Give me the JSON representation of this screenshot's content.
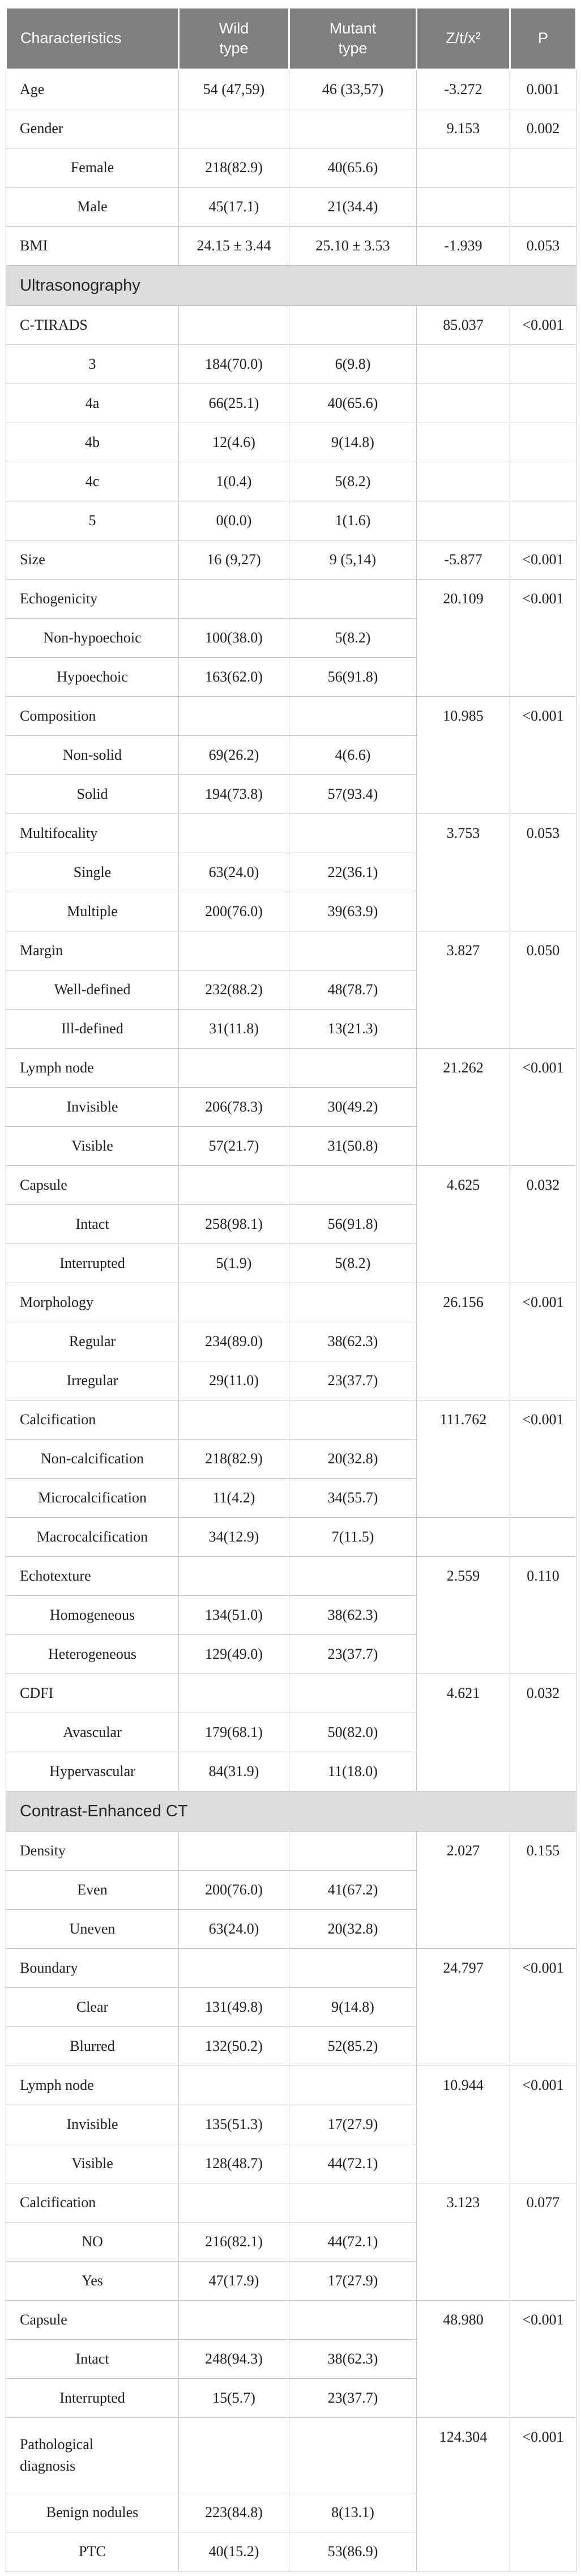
{
  "styles": {
    "header_bg": "#7f7f7f",
    "header_text": "#ffffff",
    "section_bg": "#dcdcdc",
    "grid_border": "#c3c3c3",
    "body_text": "#1f1f1f"
  },
  "table": {
    "columns": [
      {
        "label": "Characteristics"
      },
      {
        "label": "Wild\ntype"
      },
      {
        "label": "Mutant\ntype"
      },
      {
        "label": "Z/t/x²"
      },
      {
        "label": "P"
      }
    ],
    "rows": [
      {
        "type": "data",
        "label": "Age",
        "indent": false,
        "wild": "54 (47,59)",
        "mutant": "46 (33,57)",
        "stat": "-3.272",
        "p": "0.001"
      },
      {
        "type": "data",
        "label": "Gender",
        "indent": false,
        "wild": "",
        "mutant": "",
        "stat": "9.153",
        "p": "0.002"
      },
      {
        "type": "data",
        "label": "Female",
        "indent": true,
        "wild": "218(82.9)",
        "mutant": "40(65.6)",
        "stat": "",
        "p": ""
      },
      {
        "type": "data",
        "label": "Male",
        "indent": true,
        "wild": "45(17.1)",
        "mutant": "21(34.4)",
        "stat": "",
        "p": ""
      },
      {
        "type": "data",
        "label": "BMI",
        "indent": false,
        "wild": "24.15 ± 3.44",
        "mutant": "25.10 ± 3.53",
        "stat": "-1.939",
        "p": "0.053"
      },
      {
        "type": "section",
        "label": "Ultrasonography"
      },
      {
        "type": "data",
        "label": "C-TIRADS",
        "indent": false,
        "wild": "",
        "mutant": "",
        "stat": "85.037",
        "p": "<0.001"
      },
      {
        "type": "data",
        "label": "3",
        "indent": true,
        "wild": "184(70.0)",
        "mutant": "6(9.8)",
        "stat": "",
        "p": ""
      },
      {
        "type": "data",
        "label": "4a",
        "indent": true,
        "wild": "66(25.1)",
        "mutant": "40(65.6)",
        "stat": "",
        "p": ""
      },
      {
        "type": "data",
        "label": "4b",
        "indent": true,
        "wild": "12(4.6)",
        "mutant": "9(14.8)",
        "stat": "",
        "p": ""
      },
      {
        "type": "data",
        "label": "4c",
        "indent": true,
        "wild": "1(0.4)",
        "mutant": "5(8.2)",
        "stat": "",
        "p": ""
      },
      {
        "type": "data",
        "label": "5",
        "indent": true,
        "wild": "0(0.0)",
        "mutant": "1(1.6)",
        "stat": "",
        "p": ""
      },
      {
        "type": "data",
        "label": "Size",
        "indent": false,
        "wild": "16 (9,27)",
        "mutant": "9 (5,14)",
        "stat": "-5.877",
        "p": "<0.001"
      },
      {
        "type": "data",
        "label": "Echogenicity",
        "indent": false,
        "wild": "",
        "mutant": "",
        "stat": "20.109",
        "p": "<0.001",
        "stat_span": 3
      },
      {
        "type": "data",
        "label": "Non-hypoechoic",
        "indent": true,
        "wild": "100(38.0)",
        "mutant": "5(8.2)",
        "stat_omit": true
      },
      {
        "type": "data",
        "label": "Hypoechoic",
        "indent": true,
        "wild": "163(62.0)",
        "mutant": "56(91.8)",
        "stat_omit": true
      },
      {
        "type": "data",
        "label": "Composition",
        "indent": false,
        "wild": "",
        "mutant": "",
        "stat": "10.985",
        "p": "<0.001",
        "stat_span": 3
      },
      {
        "type": "data",
        "label": "Non-solid",
        "indent": true,
        "wild": "69(26.2)",
        "mutant": "4(6.6)",
        "stat_omit": true
      },
      {
        "type": "data",
        "label": "Solid",
        "indent": true,
        "wild": "194(73.8)",
        "mutant": "57(93.4)",
        "stat_omit": true
      },
      {
        "type": "data",
        "label": "Multifocality",
        "indent": false,
        "wild": "",
        "mutant": "",
        "stat": "3.753",
        "p": "0.053",
        "stat_span": 3
      },
      {
        "type": "data",
        "label": "Single",
        "indent": true,
        "wild": "63(24.0)",
        "mutant": "22(36.1)",
        "stat_omit": true
      },
      {
        "type": "data",
        "label": "Multiple",
        "indent": true,
        "wild": "200(76.0)",
        "mutant": "39(63.9)",
        "stat_omit": true
      },
      {
        "type": "data",
        "label": "Margin",
        "indent": false,
        "wild": "",
        "mutant": "",
        "stat": "3.827",
        "p": "0.050",
        "stat_span": 3
      },
      {
        "type": "data",
        "label": "Well-defined",
        "indent": true,
        "wild": "232(88.2)",
        "mutant": "48(78.7)",
        "stat_omit": true
      },
      {
        "type": "data",
        "label": "Ill-defined",
        "indent": true,
        "wild": "31(11.8)",
        "mutant": "13(21.3)",
        "stat_omit": true
      },
      {
        "type": "data",
        "label": "Lymph node",
        "indent": false,
        "wild": "",
        "mutant": "",
        "stat": "21.262",
        "p": "<0.001",
        "stat_span": 3
      },
      {
        "type": "data",
        "label": "Invisible",
        "indent": true,
        "wild": "206(78.3)",
        "mutant": "30(49.2)",
        "stat_omit": true
      },
      {
        "type": "data",
        "label": "Visible",
        "indent": true,
        "wild": "57(21.7)",
        "mutant": "31(50.8)",
        "stat_omit": true
      },
      {
        "type": "data",
        "label": "Capsule",
        "indent": false,
        "wild": "",
        "mutant": "",
        "stat": "4.625",
        "p": "0.032",
        "stat_span": 3
      },
      {
        "type": "data",
        "label": "Intact",
        "indent": true,
        "wild": "258(98.1)",
        "mutant": "56(91.8)",
        "stat_omit": true
      },
      {
        "type": "data",
        "label": "Interrupted",
        "indent": true,
        "wild": "5(1.9)",
        "mutant": "5(8.2)",
        "stat_omit": true
      },
      {
        "type": "data",
        "label": "Morphology",
        "indent": false,
        "wild": "",
        "mutant": "",
        "stat": "26.156",
        "p": "<0.001",
        "stat_span": 3
      },
      {
        "type": "data",
        "label": "Regular",
        "indent": true,
        "wild": "234(89.0)",
        "mutant": "38(62.3)",
        "stat_omit": true
      },
      {
        "type": "data",
        "label": "Irregular",
        "indent": true,
        "wild": "29(11.0)",
        "mutant": "23(37.7)",
        "stat_omit": true
      },
      {
        "type": "data",
        "label": "Calcification",
        "indent": false,
        "wild": "",
        "mutant": "",
        "stat": "111.762",
        "p": "<0.001",
        "stat_span": 3
      },
      {
        "type": "data",
        "label": "Non-calcification",
        "indent": true,
        "wild": "218(82.9)",
        "mutant": "20(32.8)",
        "stat_omit": true
      },
      {
        "type": "data",
        "label": "Microcalcification",
        "indent": true,
        "wild": "11(4.2)",
        "mutant": "34(55.7)",
        "stat_omit": true
      },
      {
        "type": "data",
        "label": "Macrocalcification",
        "indent": true,
        "wild": "34(12.9)",
        "mutant": "7(11.5)",
        "stat": "",
        "p": ""
      },
      {
        "type": "data",
        "label": "Echotexture",
        "indent": false,
        "wild": "",
        "mutant": "",
        "stat": "2.559",
        "p": "0.110",
        "stat_span": 3
      },
      {
        "type": "data",
        "label": "Homogeneous",
        "indent": true,
        "wild": "134(51.0)",
        "mutant": "38(62.3)",
        "stat_omit": true
      },
      {
        "type": "data",
        "label": "Heterogeneous",
        "indent": true,
        "wild": "129(49.0)",
        "mutant": "23(37.7)",
        "stat_omit": true
      },
      {
        "type": "data",
        "label": "CDFI",
        "indent": false,
        "wild": "",
        "mutant": "",
        "stat": "4.621",
        "p": "0.032",
        "stat_span": 3
      },
      {
        "type": "data",
        "label": "Avascular",
        "indent": true,
        "wild": "179(68.1)",
        "mutant": "50(82.0)",
        "stat_omit": true
      },
      {
        "type": "data",
        "label": "Hypervascular",
        "indent": true,
        "wild": "84(31.9)",
        "mutant": "11(18.0)",
        "stat_omit": true
      },
      {
        "type": "section",
        "label": "Contrast-Enhanced CT"
      },
      {
        "type": "data",
        "label": "Density",
        "indent": false,
        "wild": "",
        "mutant": "",
        "stat": "2.027",
        "p": "0.155",
        "stat_span": 3
      },
      {
        "type": "data",
        "label": "Even",
        "indent": true,
        "wild": "200(76.0)",
        "mutant": "41(67.2)",
        "stat_omit": true
      },
      {
        "type": "data",
        "label": "Uneven",
        "indent": true,
        "wild": "63(24.0)",
        "mutant": "20(32.8)",
        "stat_omit": true
      },
      {
        "type": "data",
        "label": "Boundary",
        "indent": false,
        "wild": "",
        "mutant": "",
        "stat": "24.797",
        "p": "<0.001",
        "stat_span": 3
      },
      {
        "type": "data",
        "label": "Clear",
        "indent": true,
        "wild": "131(49.8)",
        "mutant": "9(14.8)",
        "stat_omit": true
      },
      {
        "type": "data",
        "label": "Blurred",
        "indent": true,
        "wild": "132(50.2)",
        "mutant": "52(85.2)",
        "stat_omit": true
      },
      {
        "type": "data",
        "label": "Lymph node",
        "indent": false,
        "wild": "",
        "mutant": "",
        "stat": "10.944",
        "p": "<0.001",
        "stat_span": 3
      },
      {
        "type": "data",
        "label": "Invisible",
        "indent": true,
        "wild": "135(51.3)",
        "mutant": "17(27.9)",
        "stat_omit": true
      },
      {
        "type": "data",
        "label": "Visible",
        "indent": true,
        "wild": "128(48.7)",
        "mutant": "44(72.1)",
        "stat_omit": true
      },
      {
        "type": "data",
        "label": "Calcification",
        "indent": false,
        "wild": "",
        "mutant": "",
        "stat": "3.123",
        "p": "0.077",
        "stat_span": 3
      },
      {
        "type": "data",
        "label": "NO",
        "indent": true,
        "wild": "216(82.1)",
        "mutant": "44(72.1)",
        "stat_omit": true
      },
      {
        "type": "data",
        "label": "Yes",
        "indent": true,
        "wild": "47(17.9)",
        "mutant": "17(27.9)",
        "stat_omit": true
      },
      {
        "type": "data",
        "label": "Capsule",
        "indent": false,
        "wild": "",
        "mutant": "",
        "stat": "48.980",
        "p": "<0.001",
        "stat_span": 3
      },
      {
        "type": "data",
        "label": "Intact",
        "indent": true,
        "wild": "248(94.3)",
        "mutant": "38(62.3)",
        "stat_omit": true
      },
      {
        "type": "data",
        "label": "Interrupted",
        "indent": true,
        "wild": "15(5.7)",
        "mutant": "23(37.7)",
        "stat_omit": true
      },
      {
        "type": "data",
        "label": "Pathological diagnosis",
        "indent": false,
        "wild": "",
        "mutant": "",
        "stat": "124.304",
        "p": "<0.001",
        "stat_span": 3,
        "tall": true
      },
      {
        "type": "data",
        "label": "Benign nodules",
        "indent": true,
        "wild": "223(84.8)",
        "mutant": "8(13.1)",
        "stat_omit": true
      },
      {
        "type": "data",
        "label": "PTC",
        "indent": true,
        "wild": "40(15.2)",
        "mutant": "53(86.9)",
        "stat_omit": true
      }
    ]
  }
}
